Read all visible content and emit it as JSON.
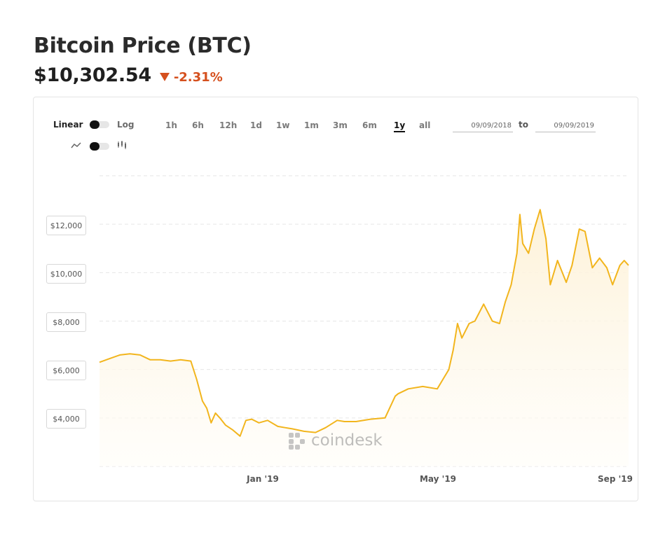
{
  "header": {
    "title": "Bitcoin Price",
    "ticker": "(BTC)",
    "price": "$10,302.54",
    "change": "-2.31%"
  },
  "controls": {
    "scale_linear": "Linear",
    "scale_log": "Log",
    "chart_line_icon": "line-chart-icon",
    "chart_candle_icon": "candlestick-icon",
    "ranges": [
      "1h",
      "6h",
      "12h",
      "1d",
      "1w",
      "1m",
      "3m",
      "6m",
      "1y",
      "all"
    ],
    "active_range": "1y",
    "date_from": "09/09/2018",
    "date_to": "09/09/2019",
    "to_label": "to"
  },
  "watermark": "coindesk",
  "colors": {
    "line": "#f2b51d",
    "fill_top": "#fdf1d6",
    "change": "#d5501e"
  },
  "chart_data": {
    "type": "area",
    "title": "Bitcoin Price (BTC)",
    "xlabel": "",
    "ylabel": "",
    "x_ticks": [
      "Jan '19",
      "May '19",
      "Sep '19"
    ],
    "y_ticks": [
      "$4,000",
      "$6,000",
      "$8,000",
      "$10,000",
      "$12,000"
    ],
    "ylim": [
      2000,
      14000
    ],
    "grid": true,
    "series": [
      {
        "x": [
          "2018-09-09",
          "2018-09-16",
          "2018-09-23",
          "2018-09-30",
          "2018-10-07",
          "2018-10-14",
          "2018-10-21",
          "2018-10-28",
          "2018-11-04",
          "2018-11-11",
          "2018-11-15",
          "2018-11-19",
          "2018-11-22",
          "2018-11-25",
          "2018-11-28",
          "2018-12-01",
          "2018-12-05",
          "2018-12-10",
          "2018-12-15",
          "2018-12-19",
          "2018-12-23",
          "2018-12-28",
          "2019-01-03",
          "2019-01-10",
          "2019-01-15",
          "2019-01-20",
          "2019-01-28",
          "2019-02-05",
          "2019-02-12",
          "2019-02-20",
          "2019-02-25",
          "2019-03-05",
          "2019-03-15",
          "2019-03-25",
          "2019-04-01",
          "2019-04-03",
          "2019-04-10",
          "2019-04-20",
          "2019-04-30",
          "2019-05-08",
          "2019-05-11",
          "2019-05-14",
          "2019-05-17",
          "2019-05-22",
          "2019-05-26",
          "2019-06-01",
          "2019-06-07",
          "2019-06-12",
          "2019-06-16",
          "2019-06-20",
          "2019-06-24",
          "2019-06-26",
          "2019-06-28",
          "2019-07-02",
          "2019-07-06",
          "2019-07-10",
          "2019-07-14",
          "2019-07-17",
          "2019-07-22",
          "2019-07-28",
          "2019-08-01",
          "2019-08-06",
          "2019-08-10",
          "2019-08-15",
          "2019-08-20",
          "2019-08-25",
          "2019-08-29",
          "2019-09-03",
          "2019-09-06",
          "2019-09-09"
        ],
        "y": [
          6300,
          6450,
          6600,
          6650,
          6600,
          6400,
          6400,
          6350,
          6400,
          6350,
          5600,
          4700,
          4400,
          3800,
          4200,
          4000,
          3700,
          3500,
          3250,
          3900,
          3950,
          3800,
          3900,
          3650,
          3600,
          3550,
          3450,
          3400,
          3600,
          3900,
          3850,
          3850,
          3950,
          4000,
          4900,
          5000,
          5200,
          5300,
          5200,
          6000,
          6800,
          7900,
          7300,
          7900,
          8000,
          8700,
          8000,
          7900,
          8800,
          9500,
          10800,
          12400,
          11200,
          10800,
          11800,
          12600,
          11400,
          9500,
          10500,
          9600,
          10300,
          11800,
          11700,
          10200,
          10600,
          10200,
          9500,
          10300,
          10500,
          10302.54
        ]
      }
    ]
  }
}
